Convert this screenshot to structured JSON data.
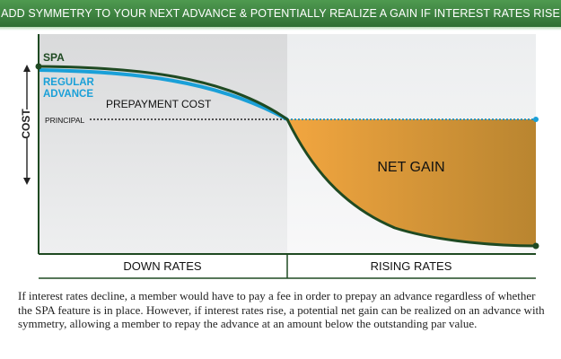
{
  "banner": {
    "title": "ADD SYMMETRY TO YOUR NEXT ADVANCE & POTENTIALLY REALIZE A GAIN IF INTEREST RATES RISE"
  },
  "diagram": {
    "y_axis_label": "COST",
    "labels": {
      "spa": "SPA",
      "regular_advance_line1": "REGULAR",
      "regular_advance_line2": "ADVANCE",
      "prepayment_cost": "PREPAYMENT COST",
      "principal": "PRINCIPAL",
      "net_gain": "NET GAIN"
    },
    "panels": {
      "left": "DOWN RATES",
      "right": "RISING RATES"
    },
    "colors": {
      "spa_line": "#1f4a22",
      "regular_advance_line": "#1aa0d8",
      "net_gain_fill_start": "#f2a640",
      "net_gain_fill_end": "#b98530",
      "left_panel_bg": "#e2e3e4",
      "right_panel_bg": "#f1f2f3",
      "principal_line": "#222222"
    }
  },
  "caption": "If interest rates decline, a member would have to pay a fee in order to prepay an advance regardless of whether the SPA feature is in place.  However, if interest rates rise, a potential net gain can be realized on an advance with symmetry, allowing a member to repay the advance at an amount below the outstanding par value."
}
